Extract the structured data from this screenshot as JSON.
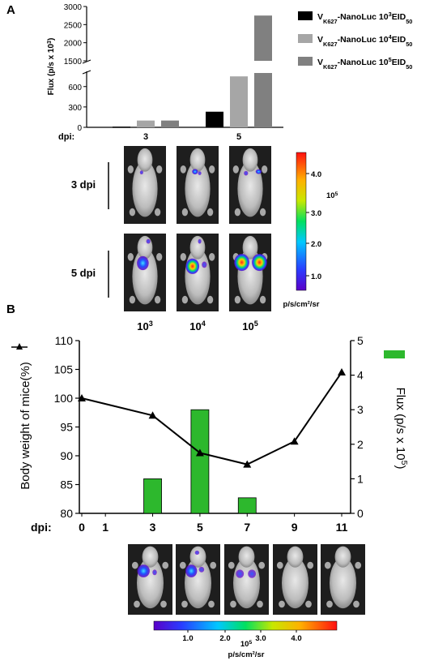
{
  "panel_a": {
    "label": "A",
    "dpi_label": "dpi:",
    "ylabel": "Flux (p/s x 10",
    "ylabel_sup": "3",
    "ylabel_end": ")",
    "legend": [
      {
        "prefix": "V",
        "sub": "K627",
        "mid": "-NanoLuc 10",
        "sup": "3",
        "end": "EID",
        "sub2": "50",
        "color": "#000000"
      },
      {
        "prefix": "V",
        "sub": "K627",
        "mid": "-NanoLuc 10",
        "sup": "4",
        "end": "EID",
        "sub2": "50",
        "color": "#a6a6a6"
      },
      {
        "prefix": "V",
        "sub": "K627",
        "mid": "-NanoLuc 10",
        "sup": "5",
        "end": "EID",
        "sub2": "50",
        "color": "#808080"
      }
    ],
    "row_labels": [
      "3 dpi",
      "5 dpi"
    ],
    "dose_labels": [
      {
        "base": "10",
        "sup": "3"
      },
      {
        "base": "10",
        "sup": "4"
      },
      {
        "base": "10",
        "sup": "5"
      }
    ],
    "colorbar": {
      "ticks": [
        "4.0",
        "3.0",
        "2.0",
        "1.0"
      ],
      "exponent": "10",
      "exponent_sup": "5",
      "unit": "p/s/cm²/sr"
    }
  },
  "panel_b": {
    "label": "B",
    "dpi_label": "dpi:",
    "ylabel_left": "Body weight of mice(%)",
    "ylabel_right_base": "Flux (p/s x 10",
    "ylabel_right_sup": "5",
    "ylabel_right_end": ")",
    "colorbar": {
      "ticks": [
        "1.0",
        "2.0",
        "3.0",
        "4.0"
      ],
      "exponent": "10",
      "exponent_sup": "5",
      "unit": "p/s/cm²/sr"
    }
  },
  "chart_data": [
    {
      "type": "bar",
      "panel": "A",
      "xlabel": "dpi:",
      "categories": [
        "3",
        "5"
      ],
      "series": [
        {
          "name": "VK627-NanoLuc 10^3 EID50",
          "values": [
            10,
            230
          ],
          "color": "#000000"
        },
        {
          "name": "VK627-NanoLuc 10^4 EID50",
          "values": [
            100,
            750
          ],
          "color": "#a6a6a6"
        },
        {
          "name": "VK627-NanoLuc 10^5 EID50",
          "values": [
            100,
            2750
          ],
          "color": "#808080"
        }
      ],
      "ylabel": "Flux (p/s x 10^3)",
      "yaxis_broken": true,
      "ylim_lower": [
        0,
        800
      ],
      "ylim_upper": [
        1500,
        3000
      ],
      "yticks": [
        0,
        300,
        600,
        1500,
        2000,
        2500,
        3000
      ]
    },
    {
      "type": "line+bar",
      "panel": "B",
      "xlabel": "dpi:",
      "x": [
        0,
        1,
        3,
        5,
        7,
        9,
        11
      ],
      "line": {
        "name": "Body weight of mice(%)",
        "x": [
          0,
          3,
          5,
          7,
          9,
          11
        ],
        "values": [
          100,
          97,
          90.5,
          88.5,
          92.5,
          104.5
        ],
        "color": "#000000",
        "marker": "triangle"
      },
      "bars": {
        "name": "Flux (p/s x 10^5)",
        "x": [
          3,
          5,
          7
        ],
        "values": [
          1,
          3,
          0.45
        ],
        "color": "#2db82d"
      },
      "ylim_left": [
        80,
        110
      ],
      "yticks_left": [
        80,
        85,
        90,
        95,
        100,
        105,
        110
      ],
      "ylim_right": [
        0,
        5
      ],
      "yticks_right": [
        0,
        1,
        2,
        3,
        4,
        5
      ]
    }
  ]
}
